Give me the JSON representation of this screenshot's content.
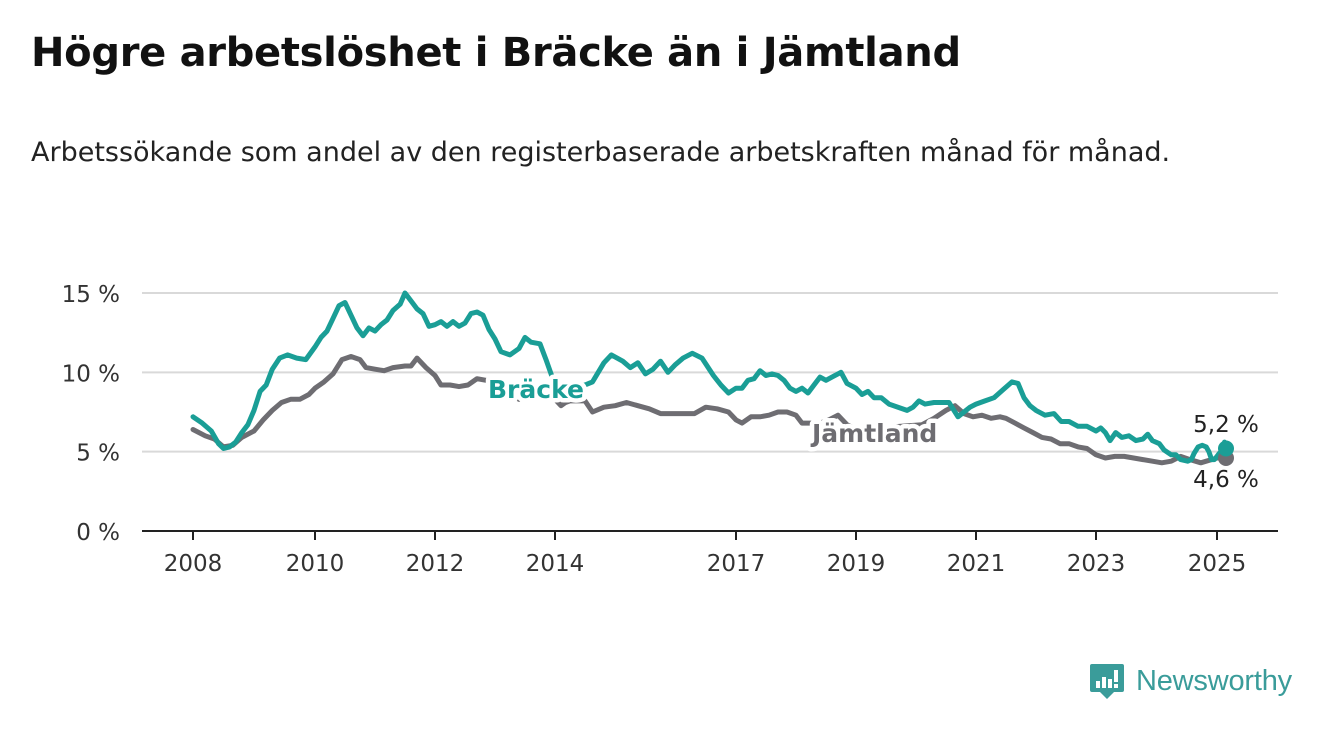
{
  "title": "Högre arbetslöshet i Bräcke än i Jämtland",
  "subtitle": "Arbetssökande som andel av den registerbaserade arbetskraften månad för månad.",
  "brand": {
    "name": "Newsworthy",
    "color": "#3a9c9a"
  },
  "chart_data": {
    "type": "line",
    "title": "Högre arbetslöshet i Bräcke än i Jämtland",
    "subtitle": "Arbetssökande som andel av den registerbaserade arbetskraften månad för månad.",
    "xlabel": "",
    "ylabel": "",
    "xlim": [
      2007.5,
      2026.0
    ],
    "ylim": [
      0,
      15
    ],
    "x_ticks": [
      2008,
      2010,
      2012,
      2014,
      2017,
      2019,
      2021,
      2023,
      2025
    ],
    "y_ticks": [
      {
        "value": 0,
        "label": "0 %"
      },
      {
        "value": 5,
        "label": "5 %"
      },
      {
        "value": 10,
        "label": "10 %"
      },
      {
        "value": 15,
        "label": "15 %"
      }
    ],
    "grid": true,
    "legend": "inline labels",
    "series": [
      {
        "name": "Bräcke",
        "color": "#1a9e96",
        "end_label": "5,2 %",
        "points": [
          [
            2008.0,
            7.2
          ],
          [
            2008.15,
            6.8
          ],
          [
            2008.3,
            6.3
          ],
          [
            2008.42,
            5.5
          ],
          [
            2008.5,
            5.2
          ],
          [
            2008.6,
            5.3
          ],
          [
            2008.7,
            5.6
          ],
          [
            2008.8,
            6.2
          ],
          [
            2008.9,
            6.7
          ],
          [
            2009.0,
            7.6
          ],
          [
            2009.1,
            8.8
          ],
          [
            2009.2,
            9.2
          ],
          [
            2009.3,
            10.2
          ],
          [
            2009.42,
            10.9
          ],
          [
            2009.55,
            11.1
          ],
          [
            2009.7,
            10.9
          ],
          [
            2009.85,
            10.8
          ],
          [
            2010.0,
            11.6
          ],
          [
            2010.1,
            12.2
          ],
          [
            2010.2,
            12.6
          ],
          [
            2010.3,
            13.4
          ],
          [
            2010.4,
            14.2
          ],
          [
            2010.5,
            14.4
          ],
          [
            2010.6,
            13.6
          ],
          [
            2010.7,
            12.8
          ],
          [
            2010.8,
            12.3
          ],
          [
            2010.9,
            12.8
          ],
          [
            2011.0,
            12.6
          ],
          [
            2011.1,
            13.0
          ],
          [
            2011.2,
            13.3
          ],
          [
            2011.3,
            13.9
          ],
          [
            2011.42,
            14.3
          ],
          [
            2011.5,
            15.0
          ],
          [
            2011.6,
            14.5
          ],
          [
            2011.7,
            14.0
          ],
          [
            2011.8,
            13.7
          ],
          [
            2011.9,
            12.9
          ],
          [
            2012.0,
            13.0
          ],
          [
            2012.1,
            13.2
          ],
          [
            2012.2,
            12.9
          ],
          [
            2012.3,
            13.2
          ],
          [
            2012.4,
            12.9
          ],
          [
            2012.5,
            13.1
          ],
          [
            2012.6,
            13.7
          ],
          [
            2012.7,
            13.8
          ],
          [
            2012.8,
            13.6
          ],
          [
            2012.9,
            12.7
          ],
          [
            2013.0,
            12.1
          ],
          [
            2013.1,
            11.3
          ],
          [
            2013.25,
            11.1
          ],
          [
            2013.4,
            11.5
          ],
          [
            2013.5,
            12.2
          ],
          [
            2013.6,
            11.9
          ],
          [
            2013.75,
            11.8
          ],
          [
            2013.85,
            10.8
          ],
          [
            2014.0,
            9.2
          ],
          [
            2015.0,
            9.2
          ],
          [
            2015.1,
            9.4
          ],
          [
            2015.25,
            10.6
          ],
          [
            2015.35,
            11.1
          ],
          [
            2015.5,
            10.7
          ],
          [
            2015.6,
            10.3
          ],
          [
            2015.7,
            10.6
          ],
          [
            2015.8,
            9.9
          ],
          [
            2015.9,
            10.2
          ],
          [
            2016.0,
            10.7
          ],
          [
            2016.1,
            10.0
          ],
          [
            2016.2,
            10.5
          ],
          [
            2016.3,
            10.9
          ],
          [
            2016.42,
            11.2
          ],
          [
            2016.55,
            10.9
          ],
          [
            2016.7,
            9.8
          ],
          [
            2016.8,
            9.2
          ],
          [
            2016.9,
            8.7
          ],
          [
            2017.0,
            9.0
          ],
          [
            2017.1,
            9.0
          ],
          [
            2017.2,
            9.5
          ],
          [
            2017.3,
            9.6
          ],
          [
            2017.4,
            10.1
          ],
          [
            2017.5,
            9.8
          ],
          [
            2017.6,
            9.9
          ],
          [
            2017.7,
            9.8
          ],
          [
            2017.8,
            9.5
          ],
          [
            2017.9,
            9.0
          ],
          [
            2018.0,
            8.8
          ],
          [
            2018.1,
            9.0
          ],
          [
            2018.2,
            8.7
          ],
          [
            2018.3,
            9.2
          ],
          [
            2018.4,
            9.7
          ],
          [
            2018.5,
            9.5
          ],
          [
            2018.6,
            9.7
          ],
          [
            2018.75,
            10.0
          ],
          [
            2018.85,
            9.3
          ],
          [
            2019.0,
            9.0
          ],
          [
            2019.1,
            8.6
          ],
          [
            2019.2,
            8.8
          ],
          [
            2019.3,
            8.4
          ],
          [
            2019.42,
            8.4
          ],
          [
            2019.55,
            8.0
          ],
          [
            2019.7,
            7.8
          ],
          [
            2019.85,
            7.6
          ],
          [
            2019.95,
            7.8
          ],
          [
            2020.05,
            8.2
          ],
          [
            2020.15,
            8.0
          ],
          [
            2020.3,
            8.1
          ],
          [
            2020.42,
            8.1
          ],
          [
            2020.55,
            8.1
          ],
          [
            2020.7,
            7.2
          ],
          [
            2020.8,
            7.5
          ],
          [
            2020.9,
            7.8
          ],
          [
            2021.0,
            8.0
          ],
          [
            2021.15,
            8.2
          ],
          [
            2021.3,
            8.4
          ],
          [
            2021.45,
            8.9
          ],
          [
            2021.6,
            9.4
          ],
          [
            2021.7,
            9.3
          ],
          [
            2021.8,
            8.4
          ],
          [
            2021.9,
            7.9
          ],
          [
            2022.0,
            7.6
          ],
          [
            2022.15,
            7.3
          ],
          [
            2022.3,
            7.4
          ],
          [
            2022.42,
            6.9
          ],
          [
            2022.55,
            6.9
          ],
          [
            2022.7,
            6.6
          ],
          [
            2022.85,
            6.6
          ],
          [
            2023.0,
            6.3
          ],
          [
            2023.1,
            6.5
          ],
          [
            2023.2,
            6.2
          ],
          [
            2023.3,
            5.7
          ],
          [
            2023.42,
            6.2
          ],
          [
            2023.55,
            5.9
          ],
          [
            2023.7,
            6.0
          ],
          [
            2023.85,
            5.7
          ],
          [
            2024.0,
            5.8
          ],
          [
            2024.1,
            6.1
          ],
          [
            2024.2,
            5.7
          ],
          [
            2024.35,
            5.5
          ],
          [
            2024.45,
            5.1
          ],
          [
            2024.6,
            4.8
          ],
          [
            2024.7,
            4.8
          ],
          [
            2024.8,
            4.5
          ],
          [
            2024.95,
            4.4
          ],
          [
            2025.05,
            4.5
          ],
          [
            2025.15,
            4.9
          ],
          [
            2025.3,
            5.3
          ],
          [
            2025.45,
            5.4
          ],
          [
            2025.6,
            5.3
          ],
          [
            2025.7,
            5.0
          ],
          [
            2025.8,
            4.5
          ],
          [
            2025.9,
            4.5
          ],
          [
            2026.0,
            4.7
          ],
          [
            2026.15,
            4.9
          ],
          [
            2026.3,
            5.0
          ],
          [
            2026.4,
            5.1
          ],
          [
            2026.5,
            5.6
          ],
          [
            2026.6,
            5.2
          ]
        ]
      },
      {
        "name": "Jämtland",
        "color": "#6e6d72",
        "end_label": "4,6 %",
        "points": [
          [
            2008.0,
            6.4
          ],
          [
            2008.2,
            6.0
          ],
          [
            2008.35,
            5.8
          ],
          [
            2008.5,
            5.3
          ],
          [
            2008.65,
            5.4
          ],
          [
            2008.8,
            5.9
          ],
          [
            2009.0,
            6.3
          ],
          [
            2009.15,
            7.0
          ],
          [
            2009.3,
            7.6
          ],
          [
            2009.45,
            8.1
          ],
          [
            2009.6,
            8.3
          ],
          [
            2009.75,
            8.3
          ],
          [
            2009.9,
            8.6
          ],
          [
            2010.0,
            9.0
          ],
          [
            2010.15,
            9.4
          ],
          [
            2010.3,
            9.9
          ],
          [
            2010.45,
            10.8
          ],
          [
            2010.6,
            11.0
          ],
          [
            2010.75,
            10.8
          ],
          [
            2010.85,
            10.3
          ],
          [
            2011.0,
            10.2
          ],
          [
            2011.15,
            10.1
          ],
          [
            2011.3,
            10.3
          ],
          [
            2011.5,
            10.4
          ],
          [
            2011.6,
            10.4
          ],
          [
            2011.7,
            10.9
          ],
          [
            2011.85,
            10.3
          ],
          [
            2012.0,
            9.8
          ],
          [
            2012.1,
            9.2
          ],
          [
            2012.25,
            9.2
          ],
          [
            2012.4,
            9.1
          ],
          [
            2012.55,
            9.2
          ],
          [
            2012.7,
            9.6
          ],
          [
            2012.85,
            9.5
          ],
          [
            2013.0,
            9.4
          ],
          [
            2013.1,
            8.8
          ],
          [
            2013.25,
            8.6
          ],
          [
            2013.4,
            8.3
          ],
          [
            2013.55,
            8.6
          ],
          [
            2013.7,
            8.6
          ],
          [
            2013.85,
            8.4
          ],
          [
            2014.0,
            8.3
          ],
          [
            2014.2,
            7.9
          ],
          [
            2014.35,
            8.1
          ],
          [
            2014.5,
            8.2
          ],
          [
            2015.0,
            8.2
          ],
          [
            2015.1,
            7.5
          ],
          [
            2015.25,
            7.8
          ],
          [
            2015.4,
            7.9
          ],
          [
            2015.55,
            8.1
          ],
          [
            2015.7,
            7.9
          ],
          [
            2015.85,
            7.7
          ],
          [
            2016.0,
            7.4
          ],
          [
            2016.15,
            7.4
          ],
          [
            2016.3,
            7.4
          ],
          [
            2016.45,
            7.4
          ],
          [
            2016.6,
            7.8
          ],
          [
            2016.75,
            7.7
          ],
          [
            2016.9,
            7.5
          ],
          [
            2017.0,
            7.0
          ],
          [
            2017.1,
            6.8
          ],
          [
            2017.25,
            7.2
          ],
          [
            2017.4,
            7.2
          ],
          [
            2017.55,
            7.3
          ],
          [
            2017.7,
            7.5
          ],
          [
            2017.85,
            7.5
          ],
          [
            2018.0,
            7.3
          ],
          [
            2018.1,
            6.8
          ],
          [
            2018.25,
            6.8
          ],
          [
            2018.4,
            6.8
          ],
          [
            2018.55,
            7.0
          ],
          [
            2018.7,
            7.3
          ],
          [
            2018.85,
            6.7
          ],
          [
            2019.0,
            6.4
          ],
          [
            2020.1,
            6.7
          ],
          [
            2020.3,
            7.1
          ],
          [
            2020.5,
            7.6
          ],
          [
            2020.65,
            7.9
          ],
          [
            2020.8,
            7.4
          ],
          [
            2020.95,
            7.2
          ],
          [
            2021.1,
            7.3
          ],
          [
            2021.25,
            7.1
          ],
          [
            2021.4,
            7.2
          ],
          [
            2021.5,
            7.1
          ],
          [
            2021.65,
            6.8
          ],
          [
            2021.8,
            6.5
          ],
          [
            2021.95,
            6.2
          ],
          [
            2022.1,
            5.9
          ],
          [
            2022.25,
            5.8
          ],
          [
            2022.4,
            5.5
          ],
          [
            2022.55,
            5.5
          ],
          [
            2022.7,
            5.3
          ],
          [
            2022.85,
            5.2
          ],
          [
            2023.0,
            4.8
          ],
          [
            2023.2,
            4.6
          ],
          [
            2023.4,
            4.7
          ],
          [
            2023.6,
            4.7
          ],
          [
            2023.8,
            4.6
          ],
          [
            2024.0,
            4.5
          ],
          [
            2024.2,
            4.4
          ],
          [
            2024.4,
            4.3
          ],
          [
            2024.6,
            4.4
          ],
          [
            2024.8,
            4.7
          ],
          [
            2025.0,
            4.5
          ],
          [
            2025.2,
            4.4
          ],
          [
            2025.4,
            4.3
          ],
          [
            2025.6,
            4.4
          ],
          [
            2025.8,
            4.5
          ],
          [
            2026.0,
            4.6
          ],
          [
            2026.2,
            4.6
          ],
          [
            2026.4,
            4.6
          ],
          [
            2026.6,
            4.6
          ]
        ]
      }
    ]
  }
}
